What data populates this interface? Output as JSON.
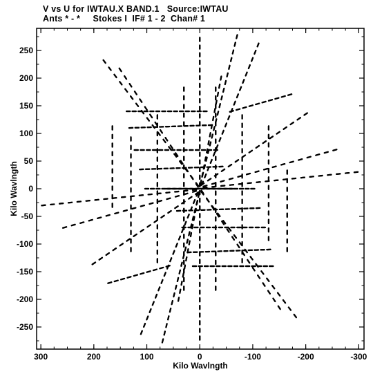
{
  "title_line1": "V vs U for IWTAU.X BAND.1   Source:IWTAU",
  "title_line2": "Ants * - *     Stokes I  IF# 1 - 2  Chan# 1",
  "chart_data": {
    "type": "scatter",
    "xlabel": "Kilo Wavlngth",
    "ylabel": "Kilo Wavlngth",
    "xlim": [
      308,
      -310
    ],
    "ylim": [
      -290,
      290
    ],
    "x_ticks": [
      300,
      200,
      100,
      0,
      -100,
      -200,
      -300
    ],
    "x_tick_labels": [
      "300",
      "200",
      "100",
      "0",
      "-100",
      "-200",
      "-300"
    ],
    "y_ticks": [
      -250,
      -200,
      -150,
      -100,
      -50,
      0,
      50,
      100,
      150,
      200,
      250
    ],
    "y_tick_labels": [
      "-250",
      "-200",
      "-150",
      "-100",
      "-50",
      "0",
      "50",
      "100",
      "150",
      "200",
      "250"
    ],
    "color": "#000000",
    "point_groups": [
      {
        "name": "radial spokes",
        "description": "UV coverage tracks",
        "tracks": [
          {
            "from": [
              -295,
              30
            ],
            "to": [
              -10,
              2
            ],
            "n": 18
          },
          {
            "from": [
              -255,
              70
            ],
            "to": [
              -10,
              5
            ],
            "n": 16
          },
          {
            "from": [
              -200,
              135
            ],
            "to": [
              -5,
              8
            ],
            "n": 16
          },
          {
            "from": [
              -110,
              260
            ],
            "to": [
              -5,
              10
            ],
            "n": 20
          },
          {
            "from": [
              -70,
              275
            ],
            "to": [
              -2,
              12
            ],
            "n": 20
          },
          {
            "from": [
              -40,
              200
            ],
            "to": [
              -2,
              10
            ],
            "n": 14
          },
          {
            "from": [
              295,
              -30
            ],
            "to": [
              10,
              -2
            ],
            "n": 18
          },
          {
            "from": [
              255,
              -70
            ],
            "to": [
              10,
              -5
            ],
            "n": 16
          },
          {
            "from": [
              200,
              -135
            ],
            "to": [
              5,
              -8
            ],
            "n": 16
          },
          {
            "from": [
              110,
              -260
            ],
            "to": [
              5,
              -10
            ],
            "n": 20
          },
          {
            "from": [
              70,
              -275
            ],
            "to": [
              2,
              -12
            ],
            "n": 20
          },
          {
            "from": [
              40,
              -200
            ],
            "to": [
              2,
              -10
            ],
            "n": 14
          },
          {
            "from": [
              180,
              230
            ],
            "to": [
              5,
              8
            ],
            "n": 18
          },
          {
            "from": [
              150,
              215
            ],
            "to": [
              5,
              6
            ],
            "n": 16
          },
          {
            "from": [
              -180,
              -230
            ],
            "to": [
              -5,
              -8
            ],
            "n": 18
          },
          {
            "from": [
              -150,
              -215
            ],
            "to": [
              -5,
              -6
            ],
            "n": 16
          }
        ]
      },
      {
        "name": "horizontal tracks",
        "tracks": [
          {
            "from": [
              135,
              140
            ],
            "to": [
              -10,
              140
            ],
            "n": 14
          },
          {
            "from": [
              130,
              110
            ],
            "to": [
              -20,
              115
            ],
            "n": 14
          },
          {
            "from": [
              120,
              70
            ],
            "to": [
              -30,
              70
            ],
            "n": 14
          },
          {
            "from": [
              110,
              35
            ],
            "to": [
              -40,
              40
            ],
            "n": 14
          },
          {
            "from": [
              100,
              0
            ],
            "to": [
              -60,
              0
            ],
            "n": 16
          },
          {
            "from": [
              -135,
              -140
            ],
            "to": [
              10,
              -140
            ],
            "n": 14
          },
          {
            "from": [
              -130,
              -110
            ],
            "to": [
              20,
              -115
            ],
            "n": 14
          },
          {
            "from": [
              -120,
              -70
            ],
            "to": [
              30,
              -70
            ],
            "n": 14
          },
          {
            "from": [
              -110,
              -35
            ],
            "to": [
              40,
              -40
            ],
            "n": 14
          },
          {
            "from": [
              -100,
              0
            ],
            "to": [
              60,
              0
            ],
            "n": 16
          },
          {
            "from": [
              -60,
              140
            ],
            "to": [
              -170,
              170
            ],
            "n": 10
          },
          {
            "from": [
              60,
              -140
            ],
            "to": [
              170,
              -170
            ],
            "n": 10
          }
        ]
      },
      {
        "name": "vertical tracks",
        "tracks": [
          {
            "from": [
              0,
              270
            ],
            "to": [
              0,
              -270
            ],
            "n": 40
          },
          {
            "from": [
              -30,
              180
            ],
            "to": [
              -30,
              -180
            ],
            "n": 24
          },
          {
            "from": [
              30,
              180
            ],
            "to": [
              30,
              -180
            ],
            "n": 24
          },
          {
            "from": [
              -80,
              130
            ],
            "to": [
              -80,
              -130
            ],
            "n": 18
          },
          {
            "from": [
              80,
              130
            ],
            "to": [
              80,
              -130
            ],
            "n": 18
          },
          {
            "from": [
              -130,
              110
            ],
            "to": [
              -130,
              -90
            ],
            "n": 14
          },
          {
            "from": [
              130,
              90
            ],
            "to": [
              130,
              -110
            ],
            "n": 14
          },
          {
            "from": [
              165,
              110
            ],
            "to": [
              165,
              -30
            ],
            "n": 10
          },
          {
            "from": [
              -165,
              -110
            ],
            "to": [
              -165,
              30
            ],
            "n": 10
          }
        ]
      }
    ]
  }
}
